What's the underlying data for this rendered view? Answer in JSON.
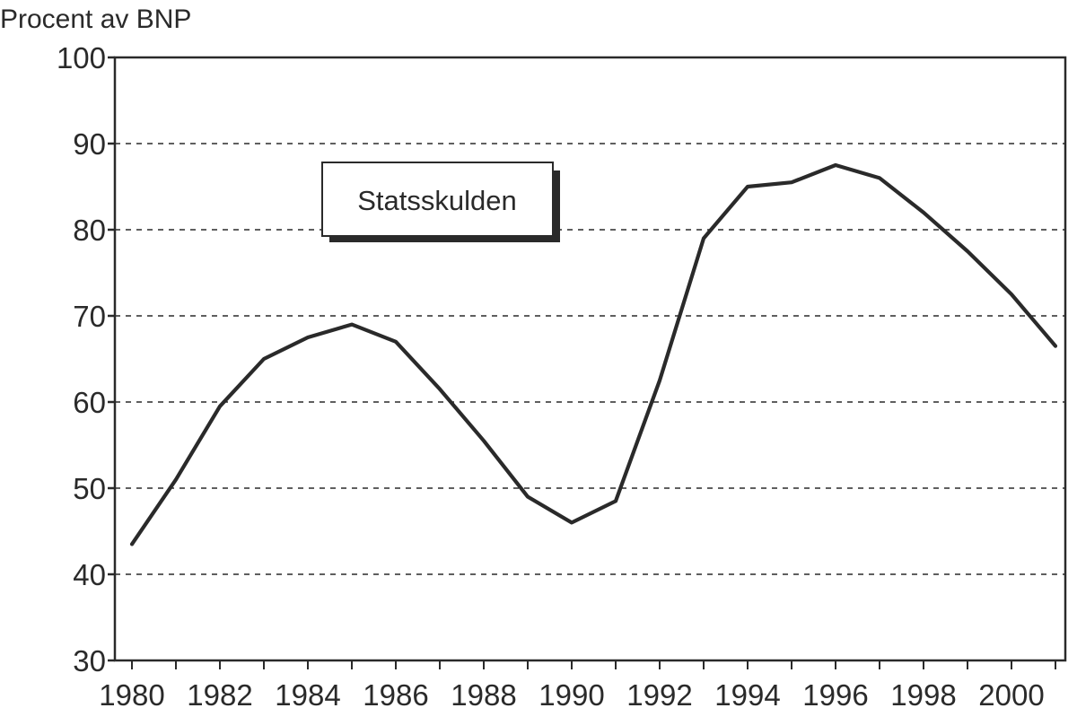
{
  "chart_data": {
    "type": "line",
    "title": "",
    "ylabel": "Procent av BNP",
    "xlabel": "",
    "xlim": [
      1980,
      2001
    ],
    "ylim": [
      30,
      100
    ],
    "yticks": [
      30,
      40,
      50,
      60,
      70,
      80,
      90,
      100
    ],
    "xticks": [
      1980,
      1982,
      1984,
      1986,
      1988,
      1990,
      1992,
      1994,
      1996,
      1998,
      2000
    ],
    "grid": "dashed-horizontal",
    "legend": "top-left-inside",
    "series": [
      {
        "name": "Statsskulden",
        "color": "#2a2a2a",
        "x": [
          1980,
          1981,
          1982,
          1983,
          1984,
          1985,
          1986,
          1987,
          1988,
          1989,
          1990,
          1991,
          1992,
          1993,
          1994,
          1995,
          1996,
          1997,
          1998,
          1999,
          2000,
          2001
        ],
        "values": [
          43.5,
          51,
          59.5,
          65,
          67.5,
          69,
          67,
          61.5,
          55.5,
          49,
          46,
          48.5,
          62.5,
          79,
          85,
          85.5,
          87.5,
          86,
          82,
          77.5,
          72.5,
          66.5
        ]
      }
    ]
  }
}
